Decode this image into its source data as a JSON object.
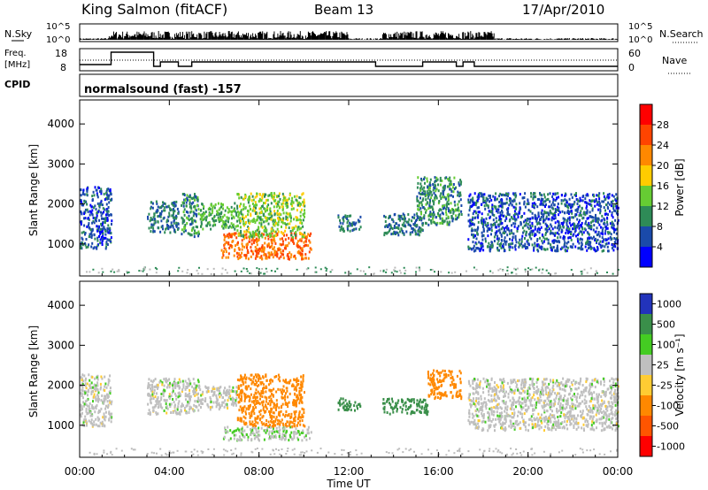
{
  "header": {
    "station": "King Salmon (fitACF)",
    "beam": "Beam 13",
    "date": "17/Apr/2010"
  },
  "panels": {
    "nsky": {
      "label": "N.Sky",
      "tick_top": "10^5",
      "tick_bottom": "10^0",
      "right_label": "N.Search",
      "right_tick_top": "10^5",
      "right_tick_bottom": "10^0"
    },
    "freq": {
      "label_top": "Freq.",
      "label_bottom": "[MHz]",
      "tick_top": "18",
      "tick_bottom": "8",
      "right_label": "Nave",
      "right_tick_top": "60",
      "right_tick_bottom": "0"
    },
    "cpid": {
      "label": "CPID",
      "value": "normalsound (fast) -157"
    }
  },
  "colors": {
    "power_scale": [
      "#0000ff",
      "#1a4aaa",
      "#2e8b57",
      "#66cc33",
      "#ffcc00",
      "#ff8800",
      "#ff4400",
      "#ff0000"
    ],
    "velocity_scale": [
      "#2233bb",
      "#3a8f4a",
      "#44cc22",
      "#bfbfbf",
      "#ffcc33",
      "#ff8800",
      "#ff5500",
      "#ff0000"
    ],
    "ground": "#bbbbbb"
  },
  "chart_data": [
    {
      "type": "heatmap",
      "title": "",
      "xlabel": "Time UT",
      "ylabel": "Slant Range [km]",
      "x_ticks": [
        "00:00",
        "04:00",
        "08:00",
        "12:00",
        "16:00",
        "20:00",
        "00:00"
      ],
      "xlim_hours": [
        0,
        24
      ],
      "y_ticks": [
        1000,
        2000,
        3000,
        4000
      ],
      "ylim": [
        200,
        4600
      ],
      "colorbar": {
        "label": "Power [dB]",
        "ticks": [
          4,
          8,
          12,
          16,
          20,
          24,
          28
        ],
        "range": [
          0,
          32
        ]
      },
      "scatter_regions": [
        {
          "t": [
            0.0,
            1.4
          ],
          "r": [
            900,
            2450
          ],
          "value": 6
        },
        {
          "t": [
            3.0,
            4.4
          ],
          "r": [
            1300,
            2100
          ],
          "value": 8
        },
        {
          "t": [
            4.5,
            5.3
          ],
          "r": [
            1200,
            2300
          ],
          "value": 10
        },
        {
          "t": [
            5.3,
            7.0
          ],
          "r": [
            1400,
            2050
          ],
          "value": 12
        },
        {
          "t": [
            6.3,
            10.3
          ],
          "r": [
            650,
            1300
          ],
          "value": 24
        },
        {
          "t": [
            7.0,
            10.0
          ],
          "r": [
            1200,
            2300
          ],
          "value": 14
        },
        {
          "t": [
            11.5,
            12.5
          ],
          "r": [
            1350,
            1750
          ],
          "value": 8
        },
        {
          "t": [
            13.5,
            15.3
          ],
          "r": [
            1250,
            1800
          ],
          "value": 8
        },
        {
          "t": [
            15.0,
            17.0
          ],
          "r": [
            1500,
            2700
          ],
          "value": 10
        },
        {
          "t": [
            17.3,
            24.0
          ],
          "r": [
            850,
            2300
          ],
          "value": 6
        }
      ]
    },
    {
      "type": "heatmap",
      "title": "",
      "xlabel": "Time UT",
      "ylabel": "Slant Range [km]",
      "x_ticks": [
        "00:00",
        "04:00",
        "08:00",
        "12:00",
        "16:00",
        "20:00",
        "00:00"
      ],
      "xlim_hours": [
        0,
        24
      ],
      "y_ticks": [
        1000,
        2000,
        3000,
        4000
      ],
      "ylim": [
        200,
        4600
      ],
      "colorbar": {
        "label": "Velocity [m s⁻¹]",
        "ticks": [
          1000,
          500,
          100,
          25,
          -25,
          -100,
          -500,
          -1000
        ]
      },
      "scatter_regions": [
        {
          "t": [
            0.0,
            1.4
          ],
          "r": [
            1000,
            2300
          ],
          "value": 0
        },
        {
          "t": [
            3.0,
            5.3
          ],
          "r": [
            1300,
            2200
          ],
          "value": 0
        },
        {
          "t": [
            5.3,
            7.0
          ],
          "r": [
            1400,
            2000
          ],
          "value": 0
        },
        {
          "t": [
            6.3,
            10.3
          ],
          "r": [
            650,
            1000
          ],
          "value": 20
        },
        {
          "t": [
            7.0,
            10.0
          ],
          "r": [
            1000,
            2300
          ],
          "value": -300
        },
        {
          "t": [
            11.5,
            12.5
          ],
          "r": [
            1400,
            1700
          ],
          "value": 150
        },
        {
          "t": [
            13.5,
            15.5
          ],
          "r": [
            1300,
            1700
          ],
          "value": 150
        },
        {
          "t": [
            15.5,
            17.0
          ],
          "r": [
            1700,
            2400
          ],
          "value": -200
        },
        {
          "t": [
            17.3,
            24.0
          ],
          "r": [
            900,
            2200
          ],
          "value": 0
        }
      ]
    }
  ]
}
